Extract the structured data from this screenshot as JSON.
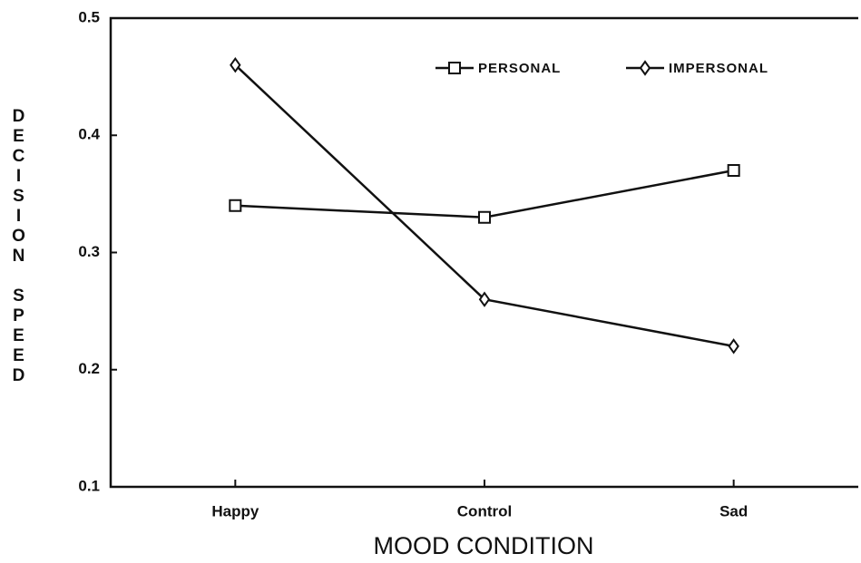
{
  "chart_data": {
    "type": "line",
    "y_label": "DECISION SPEED",
    "x_label": "MOOD CONDITION",
    "categories": [
      "Happy",
      "Control",
      "Sad"
    ],
    "series": [
      {
        "name": "PERSONAL",
        "color": "#111111",
        "marker": "square",
        "values": [
          0.34,
          0.33,
          0.37
        ]
      },
      {
        "name": "IMPERSONAL",
        "color": "#111111",
        "marker": "diamond",
        "values": [
          0.46,
          0.26,
          0.22
        ]
      }
    ],
    "ylim": [
      0.1,
      0.5
    ],
    "yticks": [
      0.1,
      0.2,
      0.3,
      0.4,
      0.5
    ],
    "legend": "top-right",
    "grid": false
  }
}
